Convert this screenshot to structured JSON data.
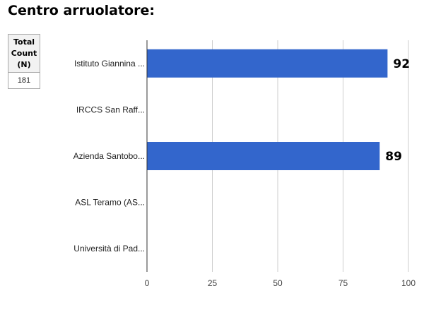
{
  "title": "Centro arruolatore:",
  "summary": {
    "header_line1": "Total",
    "header_line2": "Count",
    "header_line3": "(N)",
    "value": "181"
  },
  "colors": {
    "bar": "#3366cc",
    "grid": "#cccccc",
    "axis": "#333333"
  },
  "chart_data": {
    "type": "bar",
    "orientation": "horizontal",
    "title": "Centro arruolatore:",
    "categories": [
      "Istituto Giannina ...",
      "IRCCS San Raff...",
      "Azienda Santobo...",
      "ASL Teramo (AS...",
      "Università di Pad..."
    ],
    "values": [
      92,
      0,
      89,
      0,
      0
    ],
    "data_labels": [
      "92",
      "",
      "89",
      "",
      ""
    ],
    "xlim": [
      0,
      100
    ],
    "xticks": [
      0,
      25,
      50,
      75,
      100
    ],
    "xlabel": "",
    "ylabel": "",
    "grid": true,
    "legend": "none"
  }
}
